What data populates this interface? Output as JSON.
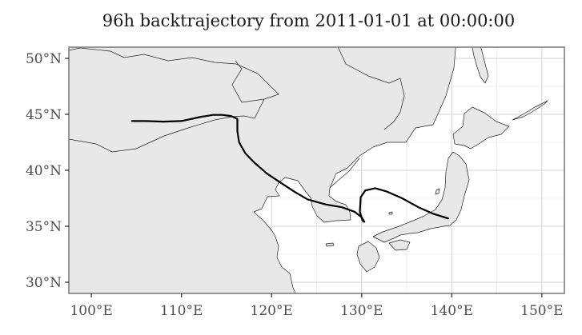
{
  "title": "96h backtrajectory from 2011-01-01 at 00:00:00",
  "map": {
    "lon_range": [
      97.5,
      152.5
    ],
    "lat_range": [
      29,
      51
    ],
    "x_ticks": [
      {
        "value": 100,
        "label": "100°E"
      },
      {
        "value": 110,
        "label": "110°E"
      },
      {
        "value": 120,
        "label": "120°E"
      },
      {
        "value": 130,
        "label": "130°E"
      },
      {
        "value": 140,
        "label": "140°E"
      },
      {
        "value": 150,
        "label": "150°E"
      }
    ],
    "y_ticks": [
      {
        "value": 30,
        "label": "30°N"
      },
      {
        "value": 35,
        "label": "35°N"
      },
      {
        "value": 40,
        "label": "40°N"
      },
      {
        "value": 45,
        "label": "45°N"
      },
      {
        "value": 50,
        "label": "50°N"
      }
    ],
    "colors": {
      "land": "#e8e8e8",
      "sea": "#ffffff",
      "coastline": "#222222",
      "trajectory": "#000000",
      "grid": "#dcdcdc"
    },
    "trajectory": [
      [
        104.5,
        44.4
      ],
      [
        106,
        44.4
      ],
      [
        108,
        44.35
      ],
      [
        110,
        44.4
      ],
      [
        112,
        44.75
      ],
      [
        113.5,
        44.95
      ],
      [
        114.5,
        44.95
      ],
      [
        115.5,
        44.85
      ],
      [
        116.2,
        44.6
      ],
      [
        116.2,
        43.5
      ],
      [
        116.4,
        42.5
      ],
      [
        117.1,
        41.5
      ],
      [
        118.2,
        40.6
      ],
      [
        119.5,
        39.7
      ],
      [
        121,
        38.9
      ],
      [
        122.5,
        38.1
      ],
      [
        124,
        37.4
      ],
      [
        126,
        36.95
      ],
      [
        127.8,
        36.7
      ],
      [
        129.2,
        36.3
      ],
      [
        130,
        35.8
      ],
      [
        130.3,
        35.4
      ],
      [
        130.1,
        35.5
      ],
      [
        129.8,
        36.3
      ],
      [
        129.9,
        37.6
      ],
      [
        130.4,
        38.2
      ],
      [
        131.5,
        38.4
      ],
      [
        132.8,
        38.1
      ],
      [
        134.5,
        37.5
      ],
      [
        136.3,
        36.7
      ],
      [
        138,
        36.1
      ],
      [
        139.6,
        35.7
      ]
    ]
  }
}
